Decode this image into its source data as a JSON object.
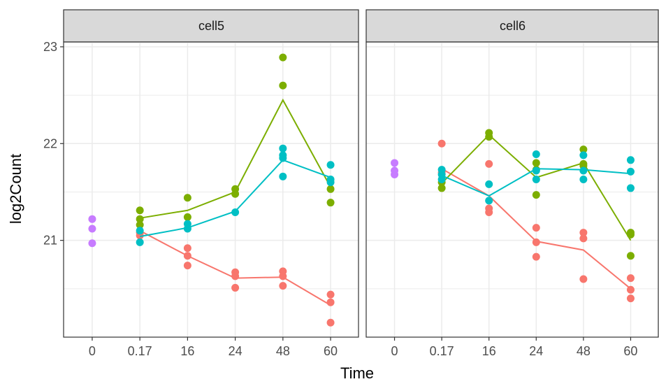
{
  "chart_data": {
    "type": "line",
    "xlabel": "Time",
    "ylabel": "log2Count",
    "x_categories": [
      "0",
      "0.17",
      "16",
      "24",
      "48",
      "60"
    ],
    "y_ticks": [
      21,
      22,
      23
    ],
    "ylim": [
      20.0,
      23.05
    ],
    "grid": true,
    "legend": "none",
    "colors": {
      "control": "#C77CFF",
      "red": "#F8766D",
      "green": "#7CAE00",
      "blue": "#00BFC4"
    },
    "panels": [
      {
        "label": "cell5",
        "series": [
          {
            "color_key": "control",
            "points": [
              {
                "x": "0",
                "y": 21.22
              },
              {
                "x": "0",
                "y": 21.12
              },
              {
                "x": "0",
                "y": 20.97
              }
            ],
            "line": []
          },
          {
            "color_key": "red",
            "points": [
              {
                "x": "0.17",
                "y": 21.08
              },
              {
                "x": "0.17",
                "y": 21.05
              },
              {
                "x": "16",
                "y": 20.92
              },
              {
                "x": "16",
                "y": 20.84
              },
              {
                "x": "16",
                "y": 20.74
              },
              {
                "x": "24",
                "y": 20.67
              },
              {
                "x": "24",
                "y": 20.63
              },
              {
                "x": "24",
                "y": 20.51
              },
              {
                "x": "48",
                "y": 20.68
              },
              {
                "x": "48",
                "y": 20.63
              },
              {
                "x": "48",
                "y": 20.53
              },
              {
                "x": "60",
                "y": 20.44
              },
              {
                "x": "60",
                "y": 20.36
              },
              {
                "x": "60",
                "y": 20.15
              }
            ],
            "line": [
              {
                "x": "0.17",
                "y": 21.1
              },
              {
                "x": "16",
                "y": 20.84
              },
              {
                "x": "24",
                "y": 20.61
              },
              {
                "x": "48",
                "y": 20.62
              },
              {
                "x": "60",
                "y": 20.33
              }
            ]
          },
          {
            "color_key": "green",
            "points": [
              {
                "x": "0.17",
                "y": 21.31
              },
              {
                "x": "0.17",
                "y": 21.22
              },
              {
                "x": "0.17",
                "y": 21.16
              },
              {
                "x": "16",
                "y": 21.44
              },
              {
                "x": "16",
                "y": 21.24
              },
              {
                "x": "24",
                "y": 21.53
              },
              {
                "x": "24",
                "y": 21.48
              },
              {
                "x": "48",
                "y": 22.89
              },
              {
                "x": "48",
                "y": 22.6
              },
              {
                "x": "60",
                "y": 21.53
              },
              {
                "x": "60",
                "y": 21.39
              }
            ],
            "line": [
              {
                "x": "0.17",
                "y": 21.23
              },
              {
                "x": "16",
                "y": 21.31
              },
              {
                "x": "24",
                "y": 21.5
              },
              {
                "x": "48",
                "y": 22.45
              },
              {
                "x": "60",
                "y": 21.55
              }
            ]
          },
          {
            "color_key": "blue",
            "points": [
              {
                "x": "0.17",
                "y": 21.1
              },
              {
                "x": "0.17",
                "y": 20.98
              },
              {
                "x": "16",
                "y": 21.17
              },
              {
                "x": "16",
                "y": 21.12
              },
              {
                "x": "24",
                "y": 21.29
              },
              {
                "x": "48",
                "y": 21.95
              },
              {
                "x": "48",
                "y": 21.88
              },
              {
                "x": "48",
                "y": 21.85
              },
              {
                "x": "48",
                "y": 21.66
              },
              {
                "x": "60",
                "y": 21.78
              },
              {
                "x": "60",
                "y": 21.63
              },
              {
                "x": "60",
                "y": 21.6
              }
            ],
            "line": [
              {
                "x": "0.17",
                "y": 21.04
              },
              {
                "x": "16",
                "y": 21.13
              },
              {
                "x": "24",
                "y": 21.3
              },
              {
                "x": "48",
                "y": 21.83
              },
              {
                "x": "60",
                "y": 21.65
              }
            ]
          }
        ]
      },
      {
        "label": "cell6",
        "series": [
          {
            "color_key": "control",
            "points": [
              {
                "x": "0",
                "y": 21.8
              },
              {
                "x": "0",
                "y": 21.72
              },
              {
                "x": "0",
                "y": 21.68
              }
            ],
            "line": []
          },
          {
            "color_key": "red",
            "points": [
              {
                "x": "0.17",
                "y": 22.0
              },
              {
                "x": "0.17",
                "y": 21.7
              },
              {
                "x": "16",
                "y": 21.79
              },
              {
                "x": "16",
                "y": 21.33
              },
              {
                "x": "16",
                "y": 21.29
              },
              {
                "x": "24",
                "y": 21.13
              },
              {
                "x": "24",
                "y": 20.98
              },
              {
                "x": "24",
                "y": 20.83
              },
              {
                "x": "48",
                "y": 21.08
              },
              {
                "x": "48",
                "y": 21.02
              },
              {
                "x": "48",
                "y": 20.6
              },
              {
                "x": "60",
                "y": 20.61
              },
              {
                "x": "60",
                "y": 20.49
              },
              {
                "x": "60",
                "y": 20.4
              }
            ],
            "line": [
              {
                "x": "0.17",
                "y": 21.74
              },
              {
                "x": "16",
                "y": 21.46
              },
              {
                "x": "24",
                "y": 20.99
              },
              {
                "x": "48",
                "y": 20.9
              },
              {
                "x": "60",
                "y": 20.5
              }
            ]
          },
          {
            "color_key": "green",
            "points": [
              {
                "x": "0.17",
                "y": 21.6
              },
              {
                "x": "0.17",
                "y": 21.54
              },
              {
                "x": "16",
                "y": 22.11
              },
              {
                "x": "16",
                "y": 22.07
              },
              {
                "x": "24",
                "y": 21.8
              },
              {
                "x": "24",
                "y": 21.73
              },
              {
                "x": "24",
                "y": 21.47
              },
              {
                "x": "48",
                "y": 21.94
              },
              {
                "x": "48",
                "y": 21.79
              },
              {
                "x": "48",
                "y": 21.77
              },
              {
                "x": "60",
                "y": 21.08
              },
              {
                "x": "60",
                "y": 21.06
              },
              {
                "x": "60",
                "y": 20.84
              }
            ],
            "line": [
              {
                "x": "0.17",
                "y": 21.59
              },
              {
                "x": "16",
                "y": 22.09
              },
              {
                "x": "24",
                "y": 21.65
              },
              {
                "x": "48",
                "y": 21.8
              },
              {
                "x": "60",
                "y": 21.0
              }
            ]
          },
          {
            "color_key": "blue",
            "points": [
              {
                "x": "0.17",
                "y": 21.73
              },
              {
                "x": "0.17",
                "y": 21.68
              },
              {
                "x": "0.17",
                "y": 21.63
              },
              {
                "x": "16",
                "y": 21.58
              },
              {
                "x": "16",
                "y": 21.41
              },
              {
                "x": "24",
                "y": 21.89
              },
              {
                "x": "24",
                "y": 21.72
              },
              {
                "x": "24",
                "y": 21.63
              },
              {
                "x": "48",
                "y": 21.88
              },
              {
                "x": "48",
                "y": 21.72
              },
              {
                "x": "48",
                "y": 21.63
              },
              {
                "x": "60",
                "y": 21.83
              },
              {
                "x": "60",
                "y": 21.71
              },
              {
                "x": "60",
                "y": 21.54
              }
            ],
            "line": [
              {
                "x": "0.17",
                "y": 21.67
              },
              {
                "x": "16",
                "y": 21.46
              },
              {
                "x": "24",
                "y": 21.74
              },
              {
                "x": "48",
                "y": 21.73
              },
              {
                "x": "60",
                "y": 21.69
              }
            ]
          }
        ]
      }
    ]
  }
}
